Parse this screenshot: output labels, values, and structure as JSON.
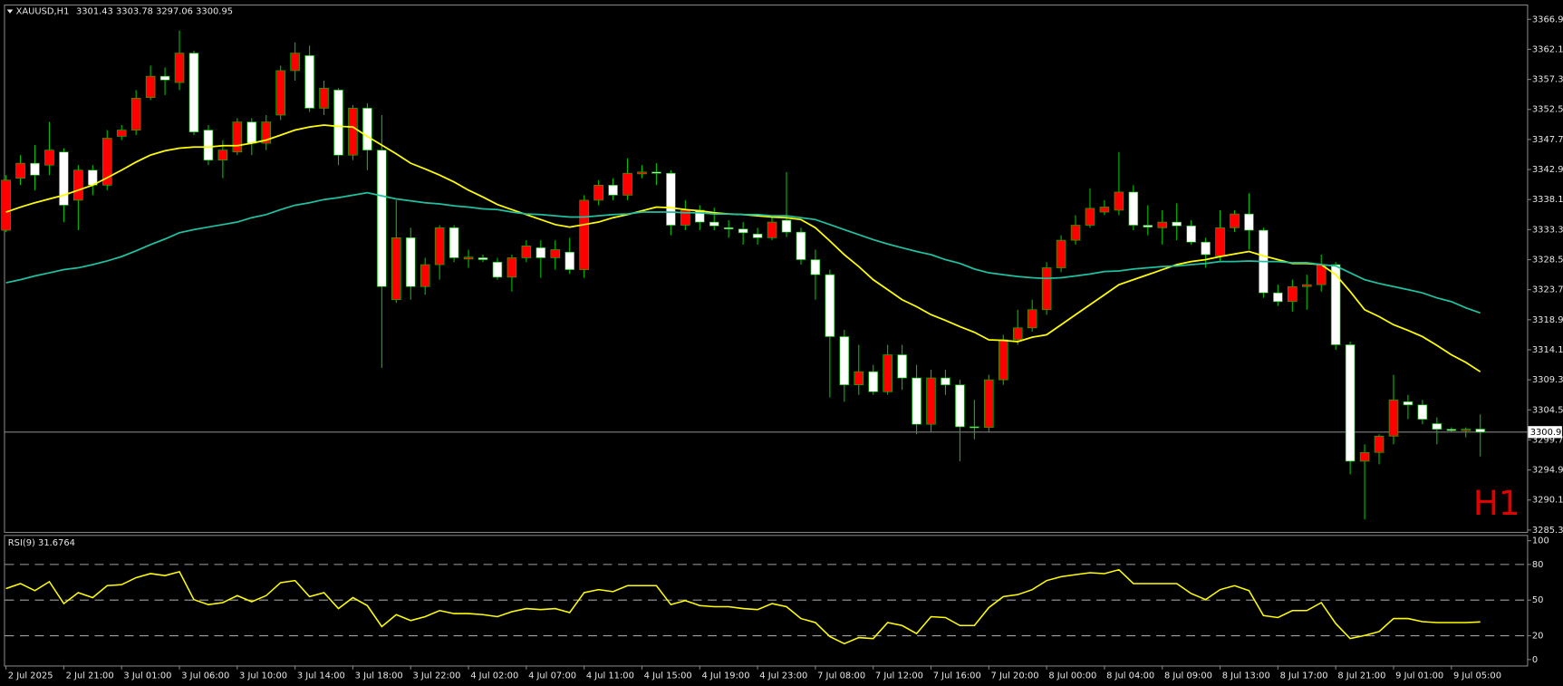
{
  "chart_data": [
    {
      "type": "candlestick",
      "title": "XAUUSD,H1",
      "annotation": "H1",
      "categories": [
        "2 Jul 2025",
        null,
        null,
        null,
        "2 Jul 21:00",
        null,
        null,
        null,
        "3 Jul 01:00",
        null,
        null,
        null,
        "3 Jul 06:00",
        null,
        null,
        null,
        "3 Jul 10:00",
        null,
        null,
        null,
        "3 Jul 14:00",
        null,
        null,
        null,
        "3 Jul 18:00",
        null,
        null,
        null,
        "3 Jul 22:00",
        null,
        null,
        null,
        "4 Jul 02:00",
        null,
        null,
        null,
        "4 Jul 07:00",
        null,
        null,
        null,
        "4 Jul 11:00",
        null,
        null,
        null,
        "4 Jul 15:00",
        null,
        null,
        null,
        "4 Jul 19:00",
        null,
        null,
        null,
        "4 Jul 23:00",
        null,
        null,
        null,
        "7 Jul 08:00",
        null,
        null,
        null,
        "7 Jul 12:00",
        null,
        null,
        null,
        "7 Jul 16:00",
        null,
        null,
        null,
        "7 Jul 20:00",
        null,
        null,
        null,
        "8 Jul 00:00",
        null,
        null,
        null,
        "8 Jul 04:00",
        null,
        null,
        null,
        "8 Jul 09:00",
        null,
        null,
        null,
        "8 Jul 13:00",
        null,
        null,
        null,
        "8 Jul 17:00",
        null,
        null,
        null,
        "8 Jul 21:00",
        null,
        null,
        null,
        "9 Jul 01:00",
        null,
        null,
        null,
        "9 Jul 05:00",
        null,
        null
      ],
      "open": [
        3333.2,
        3341.5,
        3343.9,
        3343.6,
        3345.7,
        3338.0,
        3342.8,
        3340.4,
        3348.2,
        3349.2,
        3354.4,
        3357.8,
        3356.8,
        3361.5,
        3349.2,
        3344.4,
        3345.7,
        3350.5,
        3347.1,
        3351.6,
        3358.7,
        3361.1,
        3352.7,
        3355.6,
        3345.2,
        3352.7,
        3346.0,
        3322.1,
        3332.0,
        3324.2,
        3327.7,
        3333.6,
        3328.6,
        3328.8,
        3328.1,
        3325.7,
        3328.8,
        3330.4,
        3328.8,
        3329.7,
        3326.9,
        3338.0,
        3340.4,
        3338.8,
        3342.2,
        3342.5,
        3342.3,
        3334.0,
        3336.4,
        3334.5,
        3333.6,
        3333.4,
        3332.6,
        3332.0,
        3334.8,
        3332.9,
        3328.5,
        3326.1,
        3316.2,
        3308.5,
        3310.6,
        3307.4,
        3313.3,
        3309.6,
        3302.2,
        3309.6,
        3308.5,
        3301.8,
        3301.7,
        3309.3,
        3315.7,
        3317.6,
        3320.5,
        3327.2,
        3331.6,
        3334.0,
        3336.1,
        3336.4,
        3339.3,
        3334.0,
        3333.6,
        3334.5,
        3333.9,
        3331.3,
        3329.1,
        3333.6,
        3335.8,
        3333.2,
        3323.2,
        3321.8,
        3324.2,
        3324.5,
        3327.7,
        3314.9,
        3296.3,
        3297.7,
        3300.3,
        3305.8,
        3305.3,
        3302.3,
        3301.4,
        3301.2,
        3301.43
      ],
      "high": [
        3342.0,
        3345.2,
        3346.8,
        3350.5,
        3346.3,
        3343.6,
        3343.6,
        3349.2,
        3350.0,
        3355.6,
        3359.5,
        3359.2,
        3365.1,
        3361.9,
        3350.0,
        3347.6,
        3351.1,
        3351.1,
        3351.6,
        3359.5,
        3363.2,
        3362.7,
        3357.1,
        3355.9,
        3353.2,
        3353.5,
        3351.6,
        3338.0,
        3333.6,
        3328.8,
        3334.0,
        3334.0,
        3330.1,
        3329.3,
        3328.8,
        3329.3,
        3331.6,
        3331.6,
        3331.6,
        3332.0,
        3338.8,
        3341.2,
        3341.5,
        3344.7,
        3343.6,
        3343.9,
        3342.8,
        3338.0,
        3337.2,
        3336.8,
        3334.8,
        3334.5,
        3333.6,
        3335.6,
        3342.5,
        3333.6,
        3330.1,
        3326.9,
        3317.3,
        3314.9,
        3311.7,
        3314.9,
        3314.9,
        3311.7,
        3310.9,
        3310.9,
        3309.3,
        3306.1,
        3310.1,
        3316.5,
        3320.5,
        3322.1,
        3328.1,
        3332.4,
        3335.6,
        3339.9,
        3338.0,
        3345.7,
        3340.4,
        3337.2,
        3336.4,
        3337.5,
        3334.8,
        3332.0,
        3336.4,
        3336.4,
        3339.1,
        3333.6,
        3324.5,
        3325.3,
        3326.1,
        3329.3,
        3328.1,
        3315.4,
        3299.0,
        3300.6,
        3310.1,
        3306.9,
        3306.1,
        3303.3,
        3301.7,
        3301.7,
        3303.78
      ],
      "low": [
        3332.9,
        3340.4,
        3339.6,
        3342.0,
        3334.5,
        3333.2,
        3338.8,
        3339.6,
        3347.6,
        3348.4,
        3354.0,
        3354.8,
        3355.6,
        3348.4,
        3343.6,
        3341.5,
        3345.2,
        3345.2,
        3346.0,
        3350.8,
        3357.1,
        3352.1,
        3351.6,
        3343.6,
        3344.4,
        3342.8,
        3311.2,
        3321.6,
        3322.1,
        3322.9,
        3325.3,
        3328.1,
        3327.2,
        3328.1,
        3325.3,
        3323.4,
        3328.1,
        3325.6,
        3326.9,
        3326.2,
        3325.6,
        3337.2,
        3338.0,
        3338.0,
        3341.5,
        3340.4,
        3332.4,
        3333.2,
        3333.2,
        3333.2,
        3332.0,
        3330.9,
        3330.9,
        3331.6,
        3332.1,
        3327.7,
        3322.1,
        3306.5,
        3305.8,
        3306.9,
        3306.9,
        3306.9,
        3307.7,
        3300.6,
        3301.0,
        3306.9,
        3296.3,
        3299.8,
        3301.0,
        3308.5,
        3314.9,
        3317.0,
        3319.7,
        3326.5,
        3330.9,
        3333.6,
        3335.6,
        3335.6,
        3333.2,
        3332.4,
        3330.9,
        3331.6,
        3330.9,
        3327.2,
        3328.1,
        3332.9,
        3330.1,
        3322.4,
        3321.1,
        3320.2,
        3320.5,
        3323.4,
        3314.1,
        3294.2,
        3287.0,
        3295.8,
        3299.0,
        3303.0,
        3302.2,
        3299.0,
        3301.0,
        3300.1,
        3297.06
      ],
      "close": [
        3341.2,
        3343.9,
        3342.0,
        3346.0,
        3337.2,
        3342.8,
        3340.4,
        3347.9,
        3349.2,
        3354.3,
        3357.8,
        3357.2,
        3361.5,
        3348.9,
        3344.4,
        3346.0,
        3350.5,
        3347.1,
        3350.5,
        3358.7,
        3361.5,
        3352.7,
        3355.9,
        3345.2,
        3352.7,
        3346.0,
        3324.2,
        3332.0,
        3324.2,
        3327.7,
        3333.6,
        3328.8,
        3328.9,
        3328.5,
        3325.7,
        3328.8,
        3330.7,
        3328.8,
        3330.1,
        3326.9,
        3338.0,
        3340.4,
        3338.8,
        3342.3,
        3342.5,
        3342.3,
        3334.0,
        3336.4,
        3334.5,
        3333.9,
        3333.4,
        3332.8,
        3332.0,
        3334.5,
        3332.9,
        3328.5,
        3326.1,
        3316.2,
        3308.5,
        3310.6,
        3307.4,
        3313.3,
        3309.6,
        3302.2,
        3309.6,
        3308.5,
        3301.8,
        3301.7,
        3309.3,
        3315.7,
        3317.6,
        3320.5,
        3327.2,
        3331.6,
        3334.0,
        3336.7,
        3336.9,
        3339.3,
        3334.0,
        3333.7,
        3334.5,
        3333.9,
        3331.3,
        3329.3,
        3333.6,
        3335.8,
        3333.2,
        3323.2,
        3321.8,
        3324.2,
        3324.5,
        3327.7,
        3314.9,
        3296.3,
        3297.7,
        3300.3,
        3306.1,
        3305.3,
        3303.0,
        3301.4,
        3301.2,
        3301.4,
        3300.95
      ],
      "up_color": "#ff0000",
      "down_color": "#ffffff",
      "wick_color": "#00c000",
      "overlays": [
        {
          "color": "#ffff00",
          "values": [
            3336.1,
            3336.9,
            3337.6,
            3338.2,
            3338.8,
            3339.6,
            3340.4,
            3341.6,
            3342.8,
            3344.1,
            3345.2,
            3345.9,
            3346.3,
            3346.5,
            3346.5,
            3346.7,
            3346.7,
            3347.1,
            3347.6,
            3348.4,
            3349.2,
            3349.7,
            3350.0,
            3349.8,
            3349.7,
            3348.2,
            3346.8,
            3345.4,
            3343.9,
            3343.0,
            3342.0,
            3340.9,
            3339.6,
            3338.5,
            3337.3,
            3336.5,
            3335.7,
            3334.9,
            3334.1,
            3333.7,
            3334.1,
            3334.5,
            3335.2,
            3335.7,
            3336.3,
            3336.9,
            3336.8,
            3336.5,
            3336.3,
            3336.0,
            3335.8,
            3335.7,
            3335.5,
            3335.3,
            3335.2,
            3334.9,
            3333.6,
            3331.5,
            3329.3,
            3327.4,
            3325.3,
            3323.7,
            3322.1,
            3321.0,
            3319.7,
            3318.8,
            3317.8,
            3316.9,
            3315.7,
            3315.6,
            3315.4,
            3316.1,
            3316.5,
            3318.1,
            3319.7,
            3321.3,
            3322.9,
            3324.5,
            3325.3,
            3326.1,
            3326.9,
            3327.7,
            3328.2,
            3328.5,
            3329.0,
            3329.4,
            3329.8,
            3329.1,
            3328.5,
            3327.9,
            3327.9,
            3327.7,
            3326.1,
            3323.4,
            3320.5,
            3319.4,
            3318.1,
            3317.2,
            3316.2,
            3314.8,
            3313.3,
            3312.1,
            3310.6
          ]
        },
        {
          "color": "#20c0a0",
          "values": [
            3324.8,
            3325.3,
            3325.9,
            3326.4,
            3326.9,
            3327.2,
            3327.7,
            3328.3,
            3329.0,
            3329.9,
            3330.9,
            3331.8,
            3332.8,
            3333.3,
            3333.7,
            3334.1,
            3334.5,
            3335.2,
            3335.7,
            3336.5,
            3337.2,
            3337.6,
            3338.1,
            3338.4,
            3338.8,
            3339.2,
            3338.7,
            3338.2,
            3337.9,
            3337.6,
            3337.4,
            3337.1,
            3336.9,
            3336.6,
            3336.5,
            3336.1,
            3335.8,
            3335.7,
            3335.5,
            3335.3,
            3335.3,
            3335.5,
            3335.7,
            3335.8,
            3336.1,
            3336.1,
            3336.1,
            3336.0,
            3336.0,
            3335.8,
            3335.8,
            3335.7,
            3335.7,
            3335.5,
            3335.5,
            3335.2,
            3334.9,
            3334.1,
            3333.3,
            3332.5,
            3331.7,
            3331.0,
            3330.4,
            3329.8,
            3329.3,
            3328.5,
            3327.9,
            3327.0,
            3326.4,
            3326.1,
            3325.8,
            3325.6,
            3325.5,
            3325.6,
            3325.9,
            3326.2,
            3326.6,
            3326.7,
            3327.0,
            3327.2,
            3327.4,
            3327.5,
            3327.7,
            3327.9,
            3328.2,
            3328.2,
            3328.3,
            3328.2,
            3328.2,
            3328.0,
            3328.0,
            3327.7,
            3327.5,
            3326.4,
            3325.3,
            3324.7,
            3324.2,
            3323.7,
            3323.2,
            3322.4,
            3321.8,
            3320.8,
            3320.0
          ]
        }
      ],
      "price_line_color": "#808080",
      "ylim": [
        3285.0,
        3369.1
      ],
      "yticks": [
        {
          "value": 3366.9,
          "label": "3366.90"
        },
        {
          "value": 3362.1,
          "label": "3362.10"
        },
        {
          "value": 3357.3,
          "label": "3357.30"
        },
        {
          "value": 3352.5,
          "label": "3352.50"
        },
        {
          "value": 3347.7,
          "label": "3347.70"
        },
        {
          "value": 3342.9,
          "label": "3342.90"
        },
        {
          "value": 3338.1,
          "label": "3338.10"
        },
        {
          "value": 3333.3,
          "label": "3333.30"
        },
        {
          "value": 3328.5,
          "label": "3328.50"
        },
        {
          "value": 3323.7,
          "label": "3323.70"
        },
        {
          "value": 3318.9,
          "label": "3318.90"
        },
        {
          "value": 3314.1,
          "label": "3314.10"
        },
        {
          "value": 3309.3,
          "label": "3309.30"
        },
        {
          "value": 3304.5,
          "label": "3304.50"
        },
        {
          "value": 3299.7,
          "label": "3299.70"
        },
        {
          "value": 3294.9,
          "label": "3294.90"
        },
        {
          "value": 3290.1,
          "label": "3290.10"
        },
        {
          "value": 3285.3,
          "label": "3285.30"
        }
      ]
    },
    {
      "type": "line",
      "title": "RSI(9)",
      "color": "#ffff00",
      "values": [
        59.7,
        63.9,
        58.0,
        65.5,
        47.1,
        56.3,
        52.1,
        62.2,
        63.0,
        68.9,
        72.3,
        70.6,
        73.9,
        50.4,
        46.2,
        47.9,
        53.8,
        48.7,
        53.8,
        64.7,
        66.4,
        52.9,
        56.3,
        42.9,
        52.1,
        45.4,
        27.7,
        37.8,
        32.8,
        36.1,
        41.2,
        38.7,
        38.7,
        37.8,
        36.1,
        40.3,
        42.9,
        42.0,
        42.9,
        39.5,
        56.3,
        58.8,
        57.1,
        62.2,
        62.2,
        62.2,
        46.2,
        49.6,
        45.4,
        44.5,
        44.5,
        42.9,
        42.0,
        47.1,
        44.5,
        34.5,
        31.1,
        19.3,
        13.4,
        18.5,
        17.6,
        31.1,
        28.6,
        21.8,
        36.1,
        35.3,
        28.6,
        28.6,
        43.7,
        52.9,
        54.6,
        58.8,
        66.4,
        69.7,
        71.4,
        73.1,
        72.3,
        75.6,
        63.9,
        63.9,
        63.9,
        63.9,
        55.5,
        50.4,
        58.8,
        62.2,
        58.0,
        37.0,
        35.3,
        41.2,
        41.2,
        47.9,
        30.3,
        17.6,
        20.2,
        23.5,
        34.5,
        34.5,
        31.9,
        31.1,
        31.1,
        31.1,
        31.6764
      ],
      "ylim": [
        -5,
        104
      ],
      "yticks": [
        0,
        20,
        50,
        80,
        100
      ],
      "levels": [
        20,
        50,
        80
      ],
      "level_color": "#a0a0a0"
    }
  ]
}
